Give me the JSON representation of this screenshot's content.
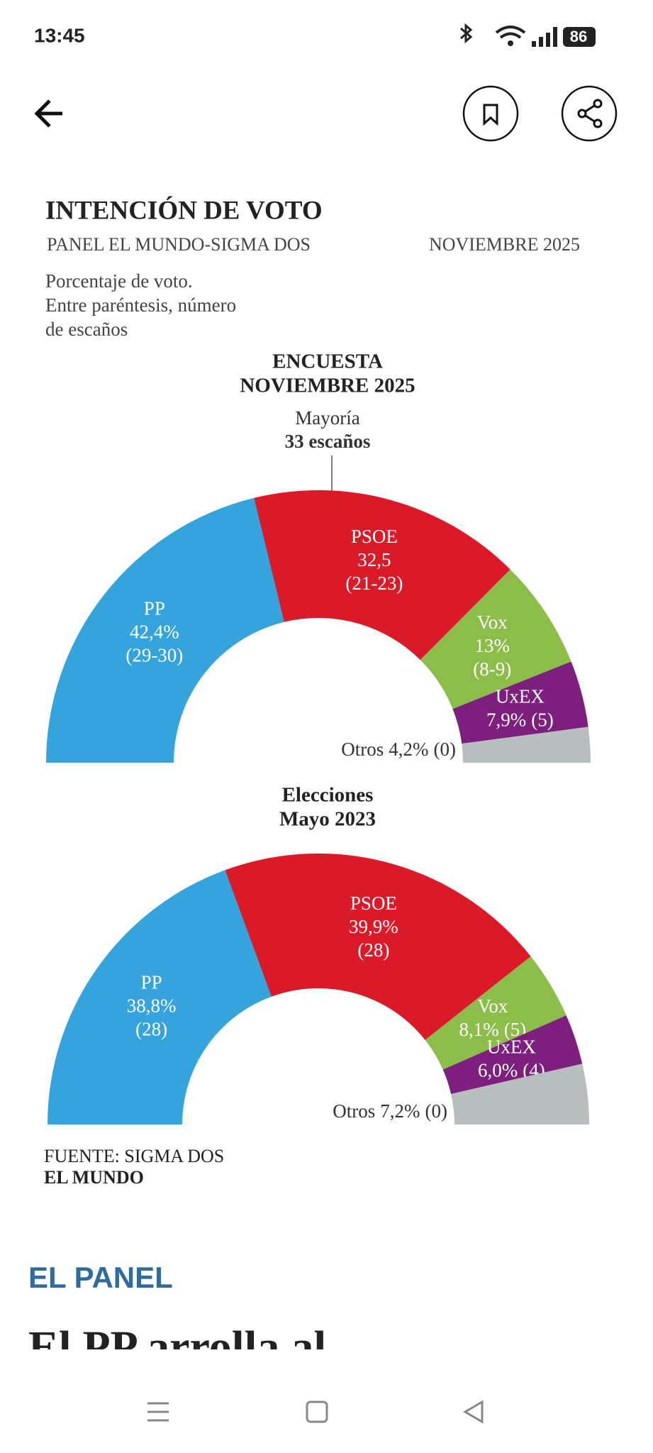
{
  "status_bar": {
    "time": "13:45",
    "battery": "86"
  },
  "header": {
    "title": "INTENCIÓN DE VOTO",
    "panel": "PANEL EL MUNDO-SIGMA DOS",
    "date": "NOVIEMBRE 2025",
    "note": [
      "Porcentaje de voto.",
      "Entre paréntesis, número",
      "de escaños"
    ]
  },
  "chart_data": [
    {
      "type": "semicircle",
      "title": [
        "ENCUESTA",
        "NOVIEMBRE 2025"
      ],
      "annotation": [
        "Mayoría",
        "33 escaños"
      ],
      "categories": [
        "PP",
        "PSOE",
        "Vox",
        "UxEX",
        "Otros"
      ],
      "values": [
        42.4,
        32.5,
        13,
        7.9,
        4.2
      ],
      "value_labels": [
        "42,4%",
        "32,5",
        "13%",
        "7,9%",
        "4,2%"
      ],
      "seats": [
        "(29-30)",
        "(21-23)",
        "(8-9)",
        "(5)",
        "(0)"
      ],
      "colors": [
        "#35a4dc",
        "#da1a29",
        "#8cbd4b",
        "#7d1f7d",
        "#b8bdbe"
      ]
    },
    {
      "type": "semicircle",
      "title": [
        "Elecciones",
        "Mayo 2023"
      ],
      "categories": [
        "PP",
        "PSOE",
        "Vox",
        "UxEX",
        "Otros"
      ],
      "values": [
        38.8,
        39.9,
        8.1,
        6.0,
        7.2
      ],
      "value_labels": [
        "38,8%",
        "39,9%",
        "8,1%",
        "6,0%",
        "7,2%"
      ],
      "seats": [
        "(28)",
        "(28)",
        "(5)",
        "(4)",
        "(0)"
      ],
      "colors": [
        "#35a4dc",
        "#da1a29",
        "#8cbd4b",
        "#7d1f7d",
        "#b8bdbe"
      ]
    }
  ],
  "footer": {
    "source": "FUENTE: SIGMA DOS",
    "brand": "EL MUNDO"
  },
  "article": {
    "kicker": "EL PANEL",
    "headline": "El PP arrolla al"
  }
}
